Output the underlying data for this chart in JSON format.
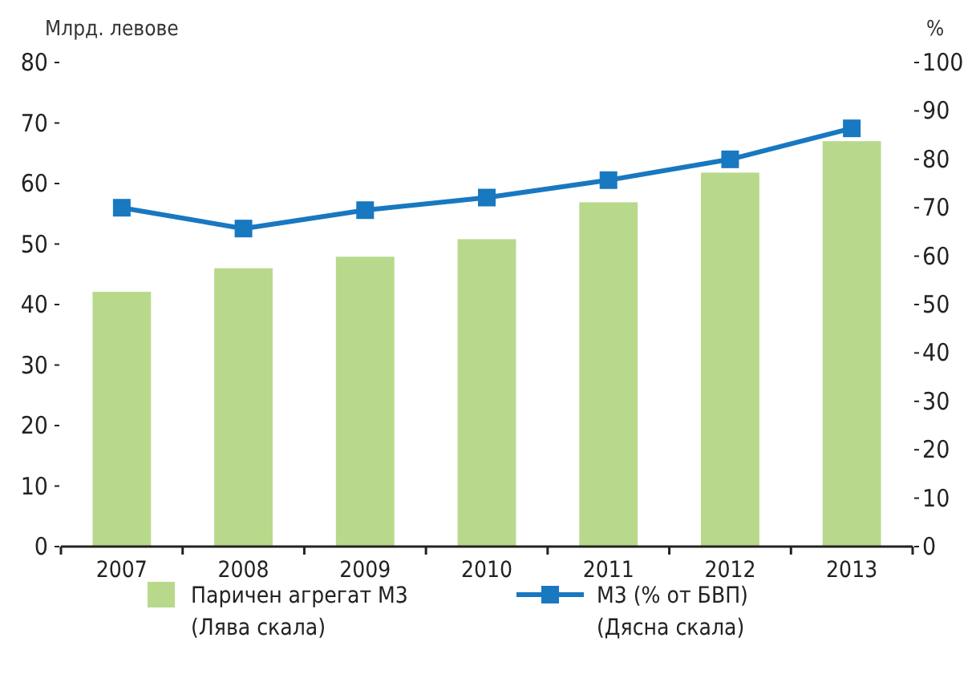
{
  "chart_data": {
    "type": "bar",
    "ylabel": "Млрд. левове",
    "y2label": "%",
    "categories": [
      "2007",
      "2008",
      "2009",
      "2010",
      "2011",
      "2012",
      "2013"
    ],
    "series": [
      {
        "name": "Паричен агрегат М3\n(Лява скала)",
        "color": "#b8d98b",
        "values": [
          42.1,
          46,
          47.9,
          50.8,
          56.9,
          61.8,
          67
        ]
      },
      {
        "name": "М3 (% от БВП)\n(Дясна скала)",
        "color": "#1878c0",
        "type": "line",
        "axis": "y2",
        "marker": "square",
        "values": [
          70,
          65.7,
          69.5,
          72.1,
          75.7,
          80,
          86.4
        ]
      }
    ],
    "ylim": [
      0,
      80
    ],
    "yticks": [
      0,
      10,
      20,
      30,
      40,
      50,
      60,
      70,
      80
    ],
    "y2lim": [
      0,
      100
    ],
    "y2ticks": [
      0,
      10,
      20,
      30,
      40,
      50,
      60,
      70,
      80,
      90,
      100
    ],
    "grid": false,
    "legend": "bottom"
  }
}
